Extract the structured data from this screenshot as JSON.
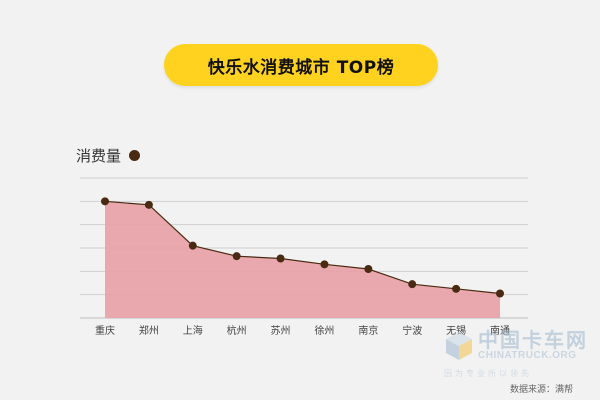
{
  "header": {
    "title": "快乐水消费城市 TOP榜"
  },
  "legend": {
    "label": "消费量",
    "color": "#4a2a12"
  },
  "colors": {
    "accent": "#ffd21f",
    "area_fill": "#e8a0a6",
    "line": "#4a2a12",
    "background": "#f2f2f2"
  },
  "chart_data": {
    "type": "area",
    "title": "快乐水消费城市 TOP榜",
    "ylabel": "消费量",
    "xlabel": "",
    "categories": [
      "重庆",
      "郑州",
      "上海",
      "杭州",
      "苏州",
      "徐州",
      "南京",
      "宁波",
      "无锡",
      "南通"
    ],
    "series": [
      {
        "name": "消费量",
        "values": [
          100,
          97,
          62,
          53,
          51,
          46,
          42,
          29,
          25,
          21
        ]
      }
    ],
    "ylim": [
      0,
      120
    ],
    "grid": true,
    "y_tick_labels_shown": false
  },
  "watermark": {
    "cn": "中国卡车网",
    "en": "CHINATRUCK.ORG",
    "sub": "因为专业所以领先"
  },
  "source": "数据来源：满帮"
}
